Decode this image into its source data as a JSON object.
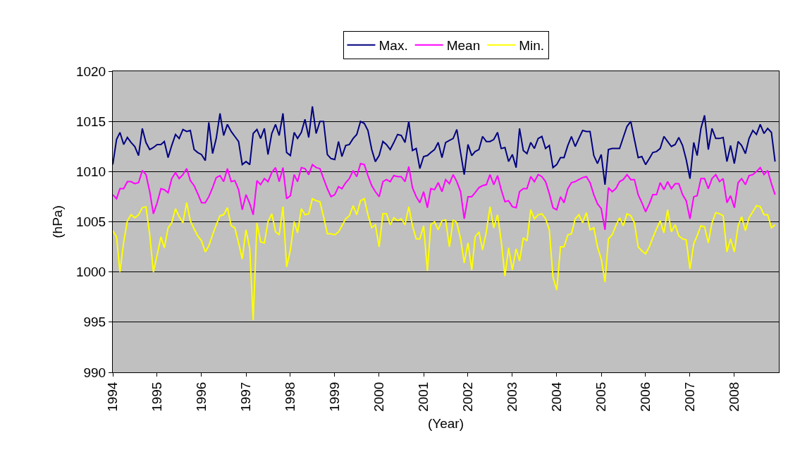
{
  "chart_data": {
    "type": "line",
    "xlabel": "(Year)",
    "ylabel": "(hPa)",
    "x": [
      "1994-01",
      "1994-02",
      "1994-03",
      "1994-04",
      "1994-05",
      "1994-06",
      "1994-07",
      "1994-08",
      "1994-09",
      "1994-10",
      "1994-11",
      "1994-12",
      "1995-01",
      "1995-02",
      "1995-03",
      "1995-04",
      "1995-05",
      "1995-06",
      "1995-07",
      "1995-08",
      "1995-09",
      "1995-10",
      "1995-11",
      "1995-12",
      "1996-01",
      "1996-02",
      "1996-03",
      "1996-04",
      "1996-05",
      "1996-06",
      "1996-07",
      "1996-08",
      "1996-09",
      "1996-10",
      "1996-11",
      "1996-12",
      "1997-01",
      "1997-02",
      "1997-03",
      "1997-04",
      "1997-05",
      "1997-06",
      "1997-07",
      "1997-08",
      "1997-09",
      "1997-10",
      "1997-11",
      "1997-12",
      "1998-01",
      "1998-02",
      "1998-03",
      "1998-04",
      "1998-05",
      "1998-06",
      "1998-07",
      "1998-08",
      "1998-09",
      "1998-10",
      "1998-11",
      "1998-12",
      "1999-01",
      "1999-02",
      "1999-03",
      "1999-04",
      "1999-05",
      "1999-06",
      "1999-07",
      "1999-08",
      "1999-09",
      "1999-10",
      "1999-11",
      "1999-12",
      "2000-01",
      "2000-02",
      "2000-03",
      "2000-04",
      "2000-05",
      "2000-06",
      "2000-07",
      "2000-08",
      "2000-09",
      "2000-10",
      "2000-11",
      "2000-12",
      "2001-01",
      "2001-02",
      "2001-03",
      "2001-04",
      "2001-05",
      "2001-06",
      "2001-07",
      "2001-08",
      "2001-09",
      "2001-10",
      "2001-11",
      "2001-12",
      "2002-01",
      "2002-02",
      "2002-03",
      "2002-04",
      "2002-05",
      "2002-06",
      "2002-07",
      "2002-08",
      "2002-09",
      "2002-10",
      "2002-11",
      "2002-12",
      "2003-01",
      "2003-02",
      "2003-03",
      "2003-04",
      "2003-05",
      "2003-06",
      "2003-07",
      "2003-08",
      "2003-09",
      "2003-10",
      "2003-11",
      "2003-12",
      "2004-01",
      "2004-02",
      "2004-03",
      "2004-04",
      "2004-05",
      "2004-06",
      "2004-07",
      "2004-08",
      "2004-09",
      "2004-10",
      "2004-11",
      "2004-12",
      "2005-01",
      "2005-02",
      "2005-03",
      "2005-04",
      "2005-05",
      "2005-06",
      "2005-07",
      "2005-08",
      "2005-09",
      "2005-10",
      "2005-11",
      "2005-12",
      "2006-01",
      "2006-02",
      "2006-03",
      "2006-04",
      "2006-05",
      "2006-06",
      "2006-07",
      "2006-08",
      "2006-09",
      "2006-10",
      "2006-11",
      "2006-12",
      "2007-01",
      "2007-02",
      "2007-03",
      "2007-04",
      "2007-05",
      "2007-06",
      "2007-07",
      "2007-08",
      "2007-09",
      "2007-10",
      "2007-11",
      "2007-12",
      "2008-01",
      "2008-02",
      "2008-03",
      "2008-04",
      "2008-05",
      "2008-06",
      "2008-07",
      "2008-08",
      "2008-09",
      "2008-10",
      "2008-11",
      "2008-12"
    ],
    "series": [
      {
        "name": "Max.",
        "color": "#000080",
        "values": [
          1010.7,
          1013.2,
          1013.9,
          1012.7,
          1013.4,
          1012.9,
          1012.5,
          1011.6,
          1014.3,
          1012.9,
          1012.2,
          1012.4,
          1012.7,
          1012.7,
          1013.0,
          1011.4,
          1012.6,
          1013.7,
          1013.3,
          1014.2,
          1014.0,
          1014.1,
          1012.2,
          1011.9,
          1011.7,
          1011.1,
          1014.9,
          1011.8,
          1013.3,
          1015.8,
          1013.6,
          1014.7,
          1014.0,
          1013.5,
          1013.0,
          1010.7,
          1011.0,
          1010.7,
          1013.8,
          1014.2,
          1013.3,
          1014.3,
          1011.7,
          1013.8,
          1014.7,
          1013.6,
          1015.8,
          1011.9,
          1011.6,
          1013.9,
          1013.3,
          1013.9,
          1015.2,
          1013.4,
          1016.5,
          1013.8,
          1015.0,
          1015.0,
          1011.7,
          1011.3,
          1011.2,
          1013.0,
          1011.5,
          1012.6,
          1012.7,
          1013.3,
          1013.7,
          1015.0,
          1014.8,
          1014.1,
          1012.2,
          1011.0,
          1011.6,
          1013.0,
          1012.7,
          1012.2,
          1012.9,
          1013.7,
          1013.6,
          1012.9,
          1015.0,
          1012.1,
          1012.3,
          1010.3,
          1011.5,
          1011.6,
          1011.9,
          1012.2,
          1012.9,
          1011.4,
          1012.9,
          1013.1,
          1013.3,
          1014.2,
          1011.9,
          1009.7,
          1012.7,
          1011.6,
          1012.0,
          1012.2,
          1013.5,
          1013.0,
          1013.0,
          1013.2,
          1013.9,
          1012.3,
          1012.4,
          1011.0,
          1011.7,
          1010.4,
          1014.3,
          1012.1,
          1011.8,
          1012.9,
          1012.3,
          1013.3,
          1013.5,
          1012.3,
          1012.6,
          1010.4,
          1010.7,
          1011.4,
          1011.4,
          1012.6,
          1013.5,
          1012.5,
          1013.3,
          1014.1,
          1014.0,
          1014.0,
          1011.6,
          1010.8,
          1011.7,
          1008.7,
          1012.2,
          1012.3,
          1012.3,
          1012.3,
          1013.4,
          1014.5,
          1015.0,
          1013.2,
          1011.4,
          1011.5,
          1010.7,
          1011.3,
          1011.9,
          1012.0,
          1012.3,
          1013.5,
          1013.0,
          1012.5,
          1012.7,
          1013.4,
          1012.6,
          1011.2,
          1009.3,
          1012.9,
          1011.6,
          1014.3,
          1015.6,
          1012.2,
          1014.3,
          1013.3,
          1013.3,
          1013.4,
          1011.0,
          1012.6,
          1010.8,
          1013.0,
          1012.6,
          1011.8,
          1013.3,
          1014.1,
          1013.7,
          1014.7,
          1013.8,
          1014.3,
          1013.9,
          1011.0
        ]
      },
      {
        "name": "Mean",
        "color": "#ff00ff",
        "values": [
          1007.7,
          1007.3,
          1008.3,
          1008.3,
          1009.0,
          1009.0,
          1008.8,
          1008.9,
          1010.1,
          1009.7,
          1008.0,
          1005.8,
          1006.9,
          1008.3,
          1008.2,
          1007.9,
          1009.3,
          1009.9,
          1009.3,
          1009.7,
          1010.3,
          1009.1,
          1008.6,
          1007.8,
          1006.9,
          1006.9,
          1007.5,
          1008.4,
          1009.4,
          1009.6,
          1009.0,
          1010.3,
          1009.0,
          1009.1,
          1008.2,
          1006.2,
          1007.7,
          1006.8,
          1005.7,
          1009.1,
          1008.7,
          1009.3,
          1009.0,
          1009.9,
          1010.4,
          1009.0,
          1010.4,
          1007.3,
          1007.6,
          1009.7,
          1009.0,
          1010.4,
          1010.3,
          1009.7,
          1010.7,
          1010.4,
          1010.3,
          1009.3,
          1008.3,
          1007.5,
          1007.7,
          1008.5,
          1008.3,
          1008.9,
          1009.3,
          1010.1,
          1009.5,
          1010.8,
          1010.7,
          1009.6,
          1008.6,
          1008.0,
          1007.5,
          1009.0,
          1009.2,
          1009.0,
          1009.6,
          1009.5,
          1009.5,
          1009.0,
          1010.5,
          1008.4,
          1007.5,
          1006.9,
          1008.0,
          1006.4,
          1008.3,
          1008.2,
          1008.9,
          1008.0,
          1009.2,
          1008.8,
          1009.7,
          1009.0,
          1008.0,
          1005.3,
          1007.5,
          1007.5,
          1007.9,
          1008.4,
          1008.6,
          1008.7,
          1009.7,
          1008.7,
          1009.6,
          1008.2,
          1007.0,
          1007.1,
          1006.5,
          1006.4,
          1008.0,
          1008.3,
          1008.3,
          1009.5,
          1009.0,
          1009.7,
          1009.5,
          1009.0,
          1007.8,
          1006.4,
          1006.2,
          1007.5,
          1006.9,
          1008.3,
          1008.9,
          1009.0,
          1009.2,
          1009.4,
          1009.5,
          1008.9,
          1007.7,
          1006.8,
          1006.3,
          1004.2,
          1008.4,
          1008.0,
          1008.3,
          1009.0,
          1009.2,
          1009.7,
          1009.2,
          1009.2,
          1007.7,
          1006.9,
          1006.0,
          1006.8,
          1007.7,
          1007.7,
          1008.9,
          1008.2,
          1009.0,
          1008.3,
          1008.8,
          1008.8,
          1007.7,
          1007.1,
          1005.3,
          1007.5,
          1007.6,
          1009.3,
          1009.3,
          1008.3,
          1009.3,
          1009.7,
          1009.0,
          1009.3,
          1006.9,
          1007.6,
          1006.4,
          1008.9,
          1009.3,
          1008.7,
          1009.6,
          1009.7,
          1010.0,
          1010.4,
          1009.7,
          1010.1,
          1008.8,
          1007.7
        ]
      },
      {
        "name": "Min.",
        "color": "#ffff00",
        "values": [
          1004.1,
          1003.5,
          1000.0,
          1003.0,
          1005.1,
          1005.7,
          1005.4,
          1005.7,
          1006.4,
          1006.5,
          1003.7,
          1000.0,
          1001.7,
          1003.5,
          1002.4,
          1004.4,
          1004.9,
          1006.3,
          1005.5,
          1004.9,
          1006.9,
          1005.1,
          1004.3,
          1003.6,
          1003.1,
          1002.0,
          1002.6,
          1003.7,
          1004.7,
          1005.6,
          1005.7,
          1006.4,
          1004.6,
          1004.4,
          1002.9,
          1001.3,
          1004.2,
          1002.3,
          995.2,
          1004.9,
          1003.0,
          1002.9,
          1005.0,
          1005.8,
          1004.0,
          1003.7,
          1006.5,
          1000.5,
          1002.2,
          1005.0,
          1003.9,
          1006.3,
          1005.7,
          1005.8,
          1007.3,
          1007.1,
          1007.0,
          1005.5,
          1003.8,
          1003.8,
          1003.7,
          1004.0,
          1004.6,
          1005.3,
          1005.6,
          1006.6,
          1005.7,
          1007.1,
          1007.3,
          1005.7,
          1004.4,
          1004.7,
          1002.5,
          1005.8,
          1005.8,
          1004.7,
          1005.4,
          1005.1,
          1005.3,
          1004.7,
          1006.5,
          1004.6,
          1003.3,
          1003.3,
          1004.6,
          1000.1,
          1004.7,
          1005.0,
          1004.2,
          1005.1,
          1005.2,
          1002.5,
          1005.2,
          1004.9,
          1003.3,
          1000.9,
          1002.9,
          1000.2,
          1003.5,
          1004.0,
          1002.2,
          1004.0,
          1006.5,
          1004.4,
          1005.7,
          1003.1,
          999.6,
          1002.4,
          1000.2,
          1002.3,
          1001.1,
          1003.4,
          1003.1,
          1006.2,
          1005.3,
          1005.7,
          1005.8,
          1005.3,
          1004.2,
          999.5,
          998.2,
          1002.5,
          1002.5,
          1003.7,
          1003.8,
          1005.3,
          1005.7,
          1004.9,
          1005.9,
          1004.2,
          1004.4,
          1002.5,
          1001.3,
          999.0,
          1003.3,
          1003.7,
          1004.6,
          1005.4,
          1004.6,
          1005.8,
          1005.6,
          1004.9,
          1002.5,
          1002.1,
          1001.8,
          1002.5,
          1003.4,
          1004.3,
          1005.1,
          1003.9,
          1006.2,
          1004.0,
          1004.7,
          1003.6,
          1003.3,
          1003.2,
          1000.3,
          1002.8,
          1003.6,
          1004.6,
          1004.5,
          1002.9,
          1004.9,
          1005.9,
          1005.8,
          1005.6,
          1002.0,
          1003.3,
          1002.0,
          1004.6,
          1005.5,
          1004.1,
          1005.4,
          1006.0,
          1006.6,
          1006.5,
          1005.7,
          1005.7,
          1004.4,
          1004.7
        ]
      }
    ],
    "xlim": [
      "1994",
      "2009"
    ],
    "xticks": [
      "1994",
      "1995",
      "1996",
      "1997",
      "1998",
      "1999",
      "2000",
      "2001",
      "2002",
      "2003",
      "2004",
      "2005",
      "2006",
      "2007",
      "2008"
    ],
    "ylim": [
      990,
      1020
    ],
    "yticks": [
      990,
      995,
      1000,
      1005,
      1010,
      1015,
      1020
    ],
    "grid": "y",
    "legend": "top",
    "marker": "none",
    "line_style": "solid"
  }
}
